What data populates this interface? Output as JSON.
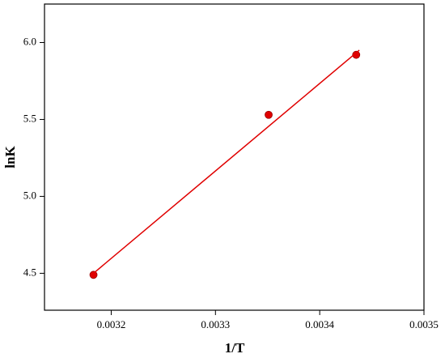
{
  "chart_data": {
    "type": "scatter",
    "x_label": "1/T",
    "y_label": "lnK",
    "xlim": [
      0.003136,
      0.0035
    ],
    "ylim": [
      4.26,
      6.25
    ],
    "xticks": [
      0.0032,
      0.0033,
      0.0034,
      0.0035
    ],
    "yticks": [
      {
        "value": 4.5,
        "label": "4.5"
      },
      {
        "value": 5,
        "label": "5.0"
      },
      {
        "value": 5.5,
        "label": "5.5"
      },
      {
        "value": 6,
        "label": "6.0"
      }
    ],
    "series": [
      {
        "type": "scatter",
        "color": "#e00000",
        "x": [
          0.003183,
          0.003351,
          0.003435
        ],
        "values": [
          4.49,
          5.53,
          5.92
        ]
      },
      {
        "type": "line",
        "color": "#e00000",
        "x": [
          0.003183,
          0.003438
        ],
        "values": [
          4.5,
          5.95
        ]
      }
    ]
  }
}
